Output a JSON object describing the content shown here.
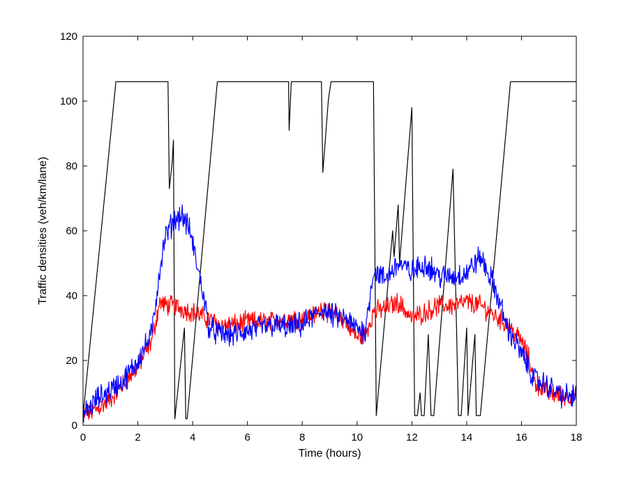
{
  "chart_data": {
    "type": "line",
    "title": "",
    "xlabel": "Time (hours)",
    "ylabel": "Traffic densities (veh/km/lane)",
    "xlim": [
      0,
      18
    ],
    "ylim": [
      0,
      120
    ],
    "x_ticks": [
      "0",
      "2",
      "4",
      "6",
      "8",
      "10",
      "12",
      "14",
      "16",
      "18"
    ],
    "y_ticks": [
      "0",
      "20",
      "40",
      "60",
      "80",
      "100",
      "120"
    ],
    "grid": false,
    "legend": "none",
    "series": [
      {
        "color": "#000000",
        "noise": 0,
        "points": [
          [
            0,
            3
          ],
          [
            1.2,
            106
          ],
          [
            3.1,
            106
          ],
          [
            3.15,
            73
          ],
          [
            3.25,
            81
          ],
          [
            3.3,
            88
          ],
          [
            3.35,
            2
          ],
          [
            3.7,
            30
          ],
          [
            3.75,
            2
          ],
          [
            3.8,
            2
          ],
          [
            4.9,
            106
          ],
          [
            7.5,
            106
          ],
          [
            7.52,
            91
          ],
          [
            7.6,
            106
          ],
          [
            8.7,
            106
          ],
          [
            8.75,
            78
          ],
          [
            8.95,
            100
          ],
          [
            8.98,
            102
          ],
          [
            9.05,
            106
          ],
          [
            10.6,
            106
          ],
          [
            10.7,
            3
          ],
          [
            11.3,
            60
          ],
          [
            11.35,
            52
          ],
          [
            11.5,
            68
          ],
          [
            11.55,
            50
          ],
          [
            12.0,
            98
          ],
          [
            12.1,
            3
          ],
          [
            12.2,
            3
          ],
          [
            12.3,
            10
          ],
          [
            12.35,
            3
          ],
          [
            12.45,
            3
          ],
          [
            12.6,
            28
          ],
          [
            12.7,
            3
          ],
          [
            12.8,
            3
          ],
          [
            13.5,
            79
          ],
          [
            13.7,
            3
          ],
          [
            13.8,
            3
          ],
          [
            14.0,
            30
          ],
          [
            14.05,
            3
          ],
          [
            14.3,
            28
          ],
          [
            14.35,
            3
          ],
          [
            14.5,
            3
          ],
          [
            15.6,
            106
          ],
          [
            18,
            106
          ]
        ]
      },
      {
        "color": "#ff0000",
        "noise": 2.5,
        "points": [
          [
            0,
            3
          ],
          [
            0.5,
            5
          ],
          [
            1,
            8
          ],
          [
            1.5,
            13
          ],
          [
            2,
            18
          ],
          [
            2.5,
            26
          ],
          [
            2.8,
            38
          ],
          [
            3.0,
            37
          ],
          [
            3.3,
            37
          ],
          [
            3.6,
            36
          ],
          [
            4.0,
            35
          ],
          [
            4.5,
            33
          ],
          [
            5.0,
            31
          ],
          [
            5.5,
            31
          ],
          [
            6,
            32
          ],
          [
            6.5,
            32
          ],
          [
            7,
            32
          ],
          [
            7.5,
            33
          ],
          [
            8,
            33
          ],
          [
            8.5,
            34
          ],
          [
            8.8,
            37
          ],
          [
            9,
            34
          ],
          [
            9.5,
            33
          ],
          [
            10,
            27
          ],
          [
            10.3,
            28
          ],
          [
            10.6,
            35
          ],
          [
            11,
            36
          ],
          [
            11.5,
            38
          ],
          [
            12,
            33
          ],
          [
            12.5,
            35
          ],
          [
            13,
            37
          ],
          [
            13.5,
            37
          ],
          [
            14,
            38
          ],
          [
            14.5,
            37
          ],
          [
            15,
            34
          ],
          [
            15.5,
            31
          ],
          [
            16,
            26
          ],
          [
            16.3,
            20
          ],
          [
            16.5,
            13
          ],
          [
            17,
            10
          ],
          [
            17.5,
            9
          ],
          [
            18,
            9
          ]
        ]
      },
      {
        "color": "#0000ff",
        "noise": 3,
        "points": [
          [
            0,
            3
          ],
          [
            0.5,
            8
          ],
          [
            1,
            11
          ],
          [
            1.5,
            14
          ],
          [
            2,
            20
          ],
          [
            2.5,
            28
          ],
          [
            2.8,
            48
          ],
          [
            3.0,
            58
          ],
          [
            3.3,
            63
          ],
          [
            3.6,
            65
          ],
          [
            3.9,
            60
          ],
          [
            4.2,
            48
          ],
          [
            4.4,
            40
          ],
          [
            4.6,
            30
          ],
          [
            5,
            28
          ],
          [
            5.5,
            28
          ],
          [
            6,
            29
          ],
          [
            6.5,
            30
          ],
          [
            7,
            31
          ],
          [
            7.5,
            30
          ],
          [
            8,
            31
          ],
          [
            8.5,
            34
          ],
          [
            8.8,
            36
          ],
          [
            9,
            34
          ],
          [
            9.5,
            33
          ],
          [
            10,
            30
          ],
          [
            10.3,
            29
          ],
          [
            10.6,
            48
          ],
          [
            11,
            45
          ],
          [
            11.5,
            50
          ],
          [
            12,
            47
          ],
          [
            12.5,
            50
          ],
          [
            13,
            46
          ],
          [
            13.5,
            46
          ],
          [
            14,
            47
          ],
          [
            14.5,
            52
          ],
          [
            15,
            43
          ],
          [
            15.5,
            30
          ],
          [
            16,
            22
          ],
          [
            16.5,
            14
          ],
          [
            17,
            12
          ],
          [
            17.5,
            9
          ],
          [
            18,
            9
          ]
        ]
      }
    ]
  }
}
